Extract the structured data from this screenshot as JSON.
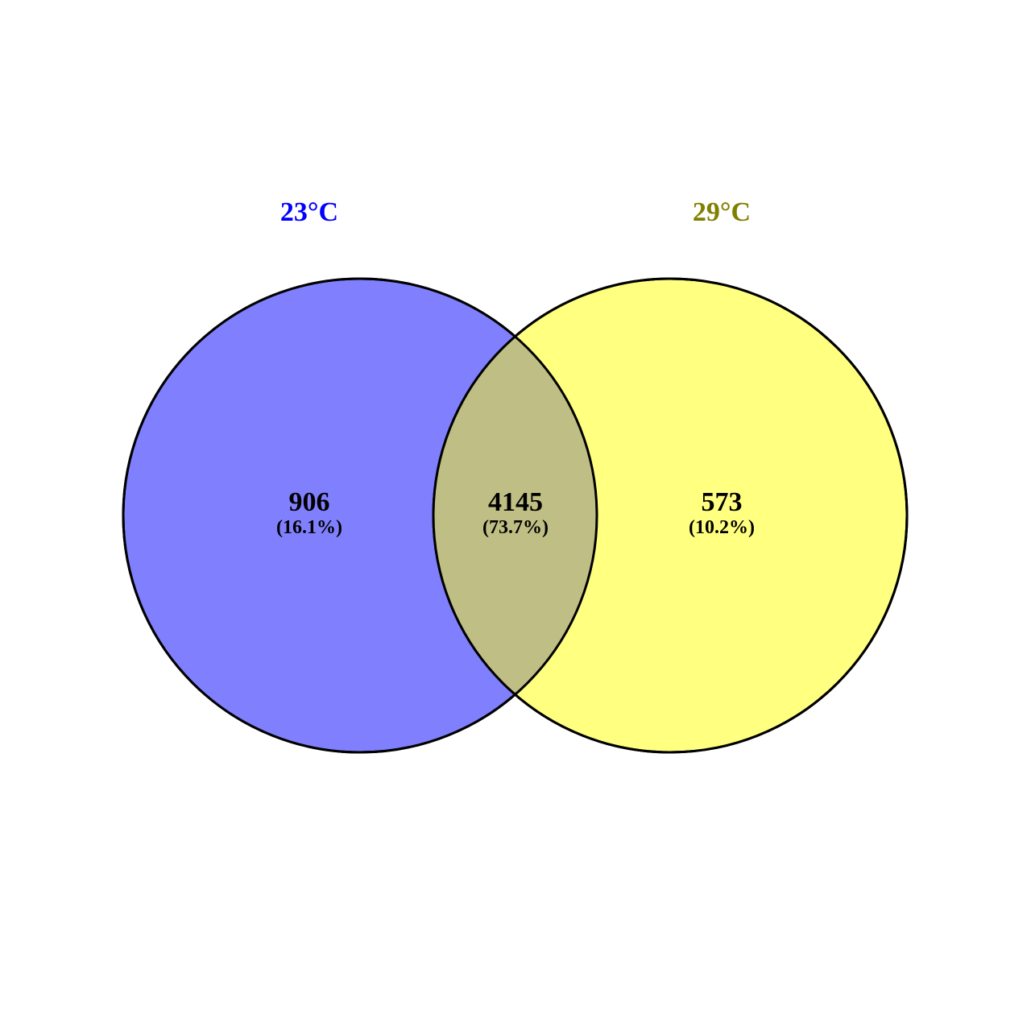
{
  "diagram": {
    "type": "venn",
    "sets": [
      {
        "label": "23°C",
        "color": "#0000ff",
        "fill": "#8080ff"
      },
      {
        "label": "29°C",
        "color": "#808000",
        "fill": "#ffff80"
      }
    ],
    "intersection_fill": "#bfbf85",
    "regions": {
      "only_23": {
        "count": "906",
        "percent": "(16.1%)"
      },
      "both": {
        "count": "4145",
        "percent": "(73.7%)"
      },
      "only_29": {
        "count": "573",
        "percent": "(10.2%)"
      }
    }
  }
}
